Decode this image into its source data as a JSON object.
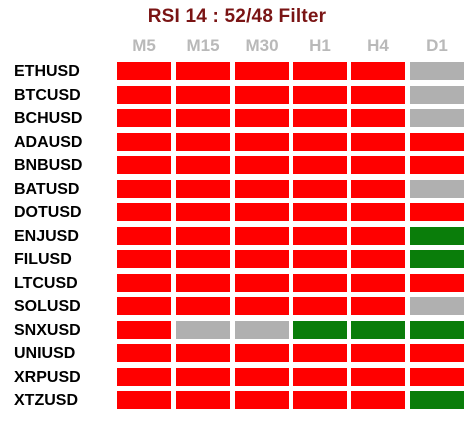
{
  "title": "RSI 14 : 52/48 Filter",
  "colors": {
    "red": "#ff0000",
    "gray": "#b0b0b0",
    "green": "#0a7d0a",
    "title": "#7a1414",
    "header": "#b9b9b9"
  },
  "timeframes": [
    "M5",
    "M15",
    "M30",
    "H1",
    "H4",
    "D1"
  ],
  "rows": [
    {
      "symbol": "ETHUSD",
      "states": [
        "red",
        "red",
        "red",
        "red",
        "red",
        "gray"
      ]
    },
    {
      "symbol": "BTCUSD",
      "states": [
        "red",
        "red",
        "red",
        "red",
        "red",
        "gray"
      ]
    },
    {
      "symbol": "BCHUSD",
      "states": [
        "red",
        "red",
        "red",
        "red",
        "red",
        "gray"
      ]
    },
    {
      "symbol": "ADAUSD",
      "states": [
        "red",
        "red",
        "red",
        "red",
        "red",
        "red"
      ]
    },
    {
      "symbol": "BNBUSD",
      "states": [
        "red",
        "red",
        "red",
        "red",
        "red",
        "red"
      ]
    },
    {
      "symbol": "BATUSD",
      "states": [
        "red",
        "red",
        "red",
        "red",
        "red",
        "gray"
      ]
    },
    {
      "symbol": "DOTUSD",
      "states": [
        "red",
        "red",
        "red",
        "red",
        "red",
        "red"
      ]
    },
    {
      "symbol": "ENJUSD",
      "states": [
        "red",
        "red",
        "red",
        "red",
        "red",
        "green"
      ]
    },
    {
      "symbol": "FILUSD",
      "states": [
        "red",
        "red",
        "red",
        "red",
        "red",
        "green"
      ]
    },
    {
      "symbol": "LTCUSD",
      "states": [
        "red",
        "red",
        "red",
        "red",
        "red",
        "red"
      ]
    },
    {
      "symbol": "SOLUSD",
      "states": [
        "red",
        "red",
        "red",
        "red",
        "red",
        "gray"
      ]
    },
    {
      "symbol": "SNXUSD",
      "states": [
        "red",
        "gray",
        "gray",
        "green",
        "green",
        "green"
      ]
    },
    {
      "symbol": "UNIUSD",
      "states": [
        "red",
        "red",
        "red",
        "red",
        "red",
        "red"
      ]
    },
    {
      "symbol": "XRPUSD",
      "states": [
        "red",
        "red",
        "red",
        "red",
        "red",
        "red"
      ]
    },
    {
      "symbol": "XTZUSD",
      "states": [
        "red",
        "red",
        "red",
        "red",
        "red",
        "green"
      ]
    }
  ]
}
